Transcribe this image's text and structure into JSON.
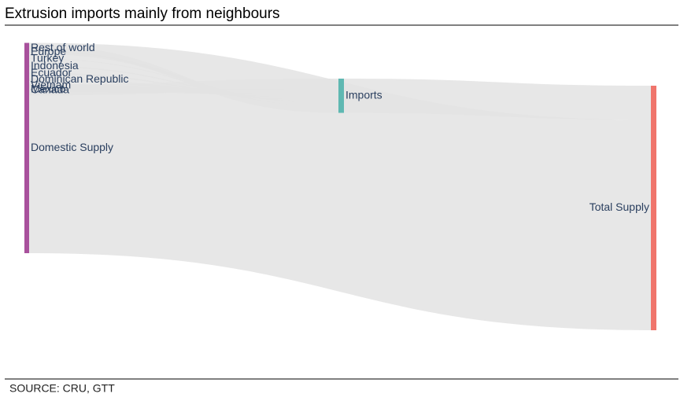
{
  "chart_data": {
    "type": "sankey",
    "title": "Extrusion imports mainly from neighbours",
    "source": "SOURCE: CRU, GTT",
    "nodes": [
      {
        "name": "Canada",
        "color": "#2c5680"
      },
      {
        "name": "Mexico",
        "color": "#2c5680"
      },
      {
        "name": "Vietnam",
        "color": "#2c5680"
      },
      {
        "name": "Dominican Republic",
        "color": "#2c5680"
      },
      {
        "name": "Ecuador",
        "color": "#2c5680"
      },
      {
        "name": "Indonesia",
        "color": "#2c5680"
      },
      {
        "name": "Turkey",
        "color": "#2c5680"
      },
      {
        "name": "Europe",
        "color": "#2c5680"
      },
      {
        "name": "Rest of world",
        "color": "#2c5680"
      },
      {
        "name": "Imports",
        "color": "#5fb8b2"
      },
      {
        "name": "Domestic Supply",
        "color": "#a8519c"
      },
      {
        "name": "Total Supply",
        "color": "#f0756c"
      }
    ],
    "links": [
      {
        "source": 0,
        "target": 9,
        "value": 4.3
      },
      {
        "source": 1,
        "target": 9,
        "value": 2.2
      },
      {
        "source": 2,
        "target": 9,
        "value": 1.3
      },
      {
        "source": 3,
        "target": 9,
        "value": 1.0
      },
      {
        "source": 4,
        "target": 9,
        "value": 0.6
      },
      {
        "source": 5,
        "target": 9,
        "value": 0.5
      },
      {
        "source": 6,
        "target": 9,
        "value": 0.3
      },
      {
        "source": 7,
        "target": 9,
        "value": 1.3
      },
      {
        "source": 8,
        "target": 9,
        "value": 2.5
      },
      {
        "source": 9,
        "target": 11,
        "value": 14
      },
      {
        "source": 10,
        "target": 11,
        "value": 86
      }
    ],
    "link_color": "#e3e3e3"
  }
}
